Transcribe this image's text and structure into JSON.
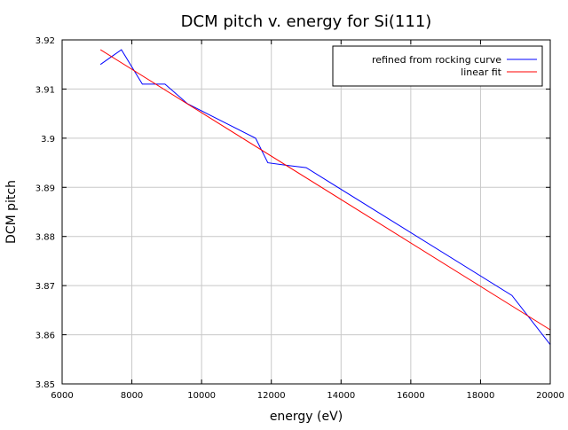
{
  "chart_data": {
    "type": "line",
    "title": "DCM pitch v. energy for Si(111)",
    "xlabel": "energy (eV)",
    "ylabel": "DCM pitch",
    "xlim": [
      6000,
      20000
    ],
    "ylim": [
      3.85,
      3.92
    ],
    "xticks": [
      "6000",
      "8000",
      "10000",
      "12000",
      "14000",
      "16000",
      "18000",
      "20000"
    ],
    "yticks": [
      "3.85",
      "3.86",
      "3.87",
      "3.88",
      "3.89",
      "3.9",
      "3.91",
      "3.92"
    ],
    "grid": true,
    "legend_position": "top-right",
    "series": [
      {
        "name": "refined from rocking curve",
        "color": "#0000ff",
        "x": [
          7100,
          7700,
          8300,
          8950,
          9600,
          11550,
          11900,
          12400,
          13000,
          18900,
          20000
        ],
        "y": [
          3.915,
          3.918,
          3.911,
          3.911,
          3.907,
          3.9,
          3.895,
          3.8945,
          3.894,
          3.868,
          3.858
        ]
      },
      {
        "name": "linear fit",
        "color": "#ff0000",
        "x": [
          7100,
          20000
        ],
        "y": [
          3.918,
          3.861
        ]
      }
    ]
  }
}
